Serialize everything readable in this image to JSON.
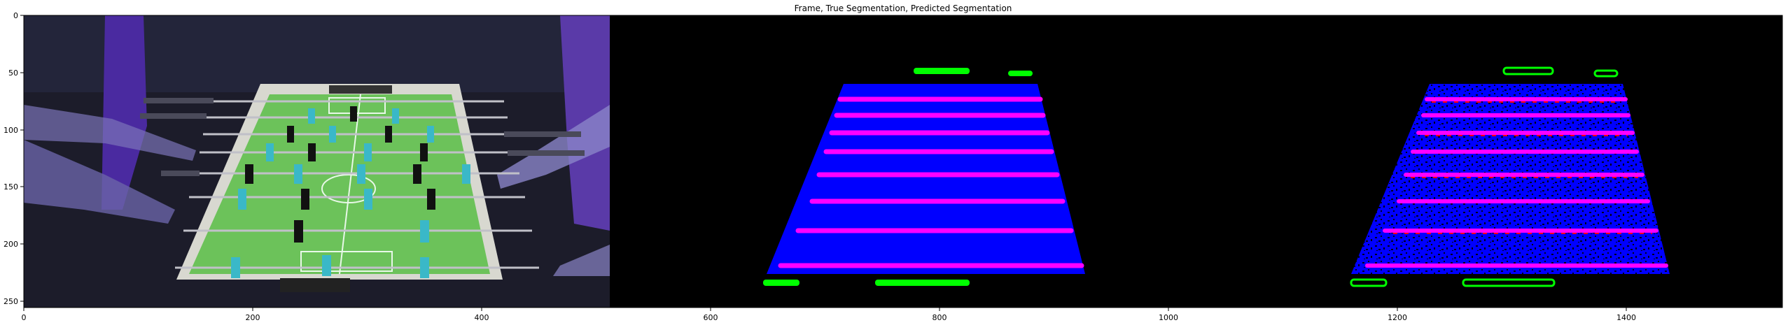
{
  "figure": {
    "title": "Frame, True Segmentation, Predicted Segmentation",
    "x_axis": {
      "range": [
        0,
        1536
      ],
      "ticks": [
        0,
        200,
        400,
        600,
        800,
        1000,
        1200,
        1400
      ]
    },
    "y_axis": {
      "range": [
        256,
        0
      ],
      "ticks": [
        0,
        50,
        100,
        150,
        200,
        250
      ]
    },
    "panels": [
      {
        "name": "frame",
        "content": "foosball table video frame"
      },
      {
        "name": "true-segmentation",
        "colors": {
          "background": "#000000",
          "field": "#0000ff",
          "rods": "#ff00ff",
          "goals": "#00ff00"
        }
      },
      {
        "name": "predicted-segmentation",
        "colors": {
          "background": "#000000",
          "field": "#0000ff",
          "rods": "#ff00ff",
          "goals": "#00ff00",
          "noise": "#ff0000"
        }
      }
    ]
  }
}
